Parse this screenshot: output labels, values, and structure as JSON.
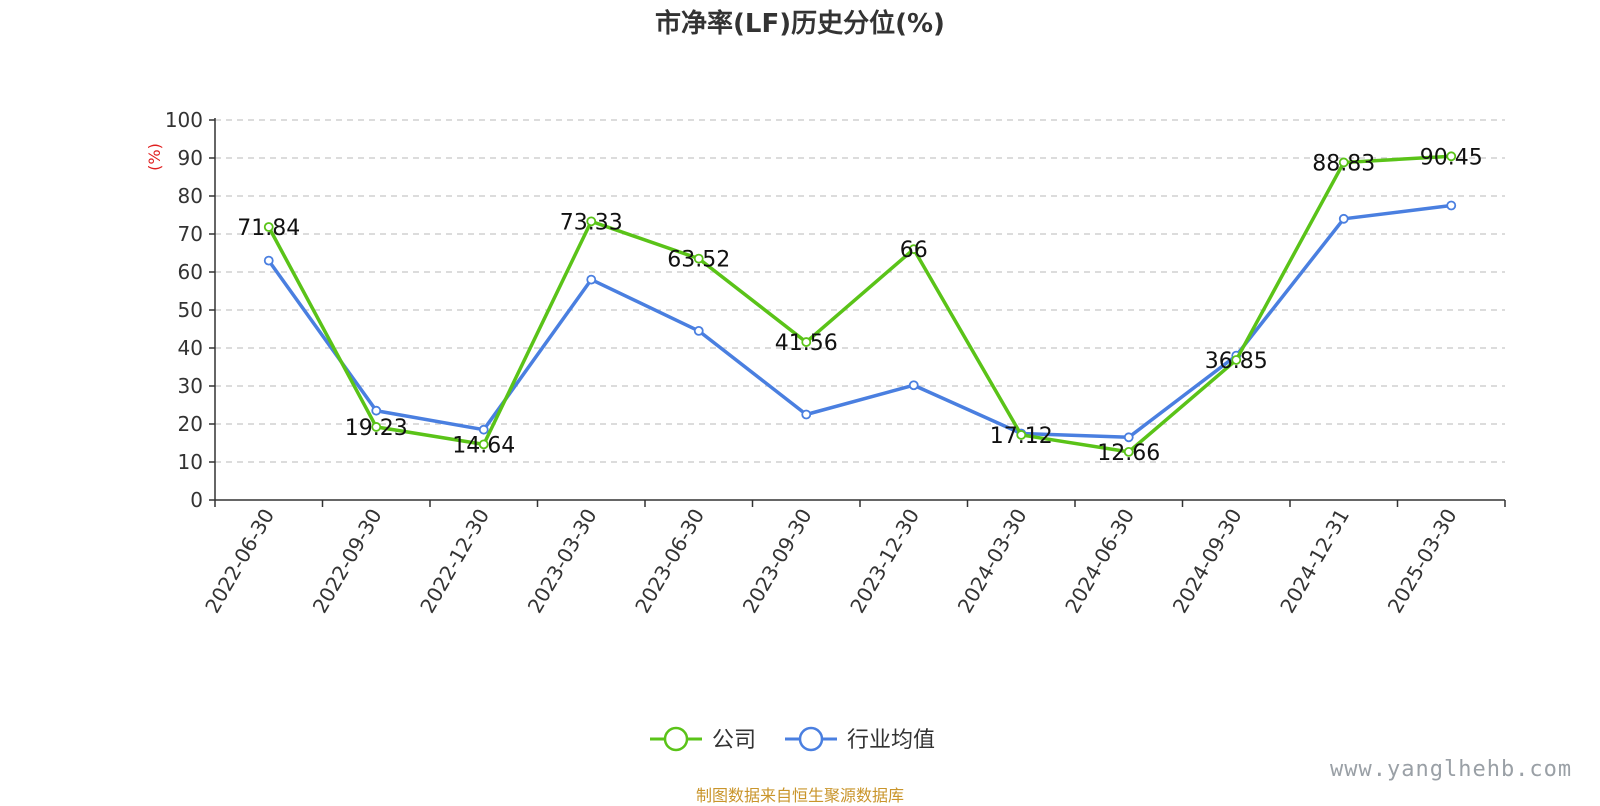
{
  "footer": {
    "source": "制图数据来自恒生聚源数据库",
    "watermark": "www.yanglhehb.com"
  },
  "chart_data": {
    "type": "line",
    "title": "市净率(LF)历史分位(%)",
    "ylabel": "(%)",
    "xlabel": "",
    "ylim": [
      0,
      100
    ],
    "yticks": [
      0,
      10,
      20,
      30,
      40,
      50,
      60,
      70,
      80,
      90,
      100
    ],
    "grid": true,
    "legend_position": "bottom",
    "categories": [
      "2022-06-30",
      "2022-09-30",
      "2022-12-30",
      "2023-03-30",
      "2023-06-30",
      "2023-09-30",
      "2023-12-30",
      "2024-03-30",
      "2024-06-30",
      "2024-09-30",
      "2024-12-31",
      "2025-03-30"
    ],
    "series": [
      {
        "name": "公司",
        "color": "#5ac318",
        "values": [
          71.84,
          19.23,
          14.64,
          73.33,
          63.52,
          41.56,
          66,
          17.12,
          12.66,
          36.85,
          88.83,
          90.45
        ],
        "labels": [
          "71.84",
          "19.23",
          "14.64",
          "73.33",
          "63.52",
          "41.56",
          "66",
          "17.12",
          "12.66",
          "36.85",
          "88.83",
          "90.45"
        ]
      },
      {
        "name": "行业均值",
        "color": "#4a7fe0",
        "values": [
          63,
          23.5,
          18.5,
          58,
          44.5,
          22.5,
          30.2,
          17.5,
          16.5,
          38,
          74,
          77.5
        ]
      }
    ]
  }
}
